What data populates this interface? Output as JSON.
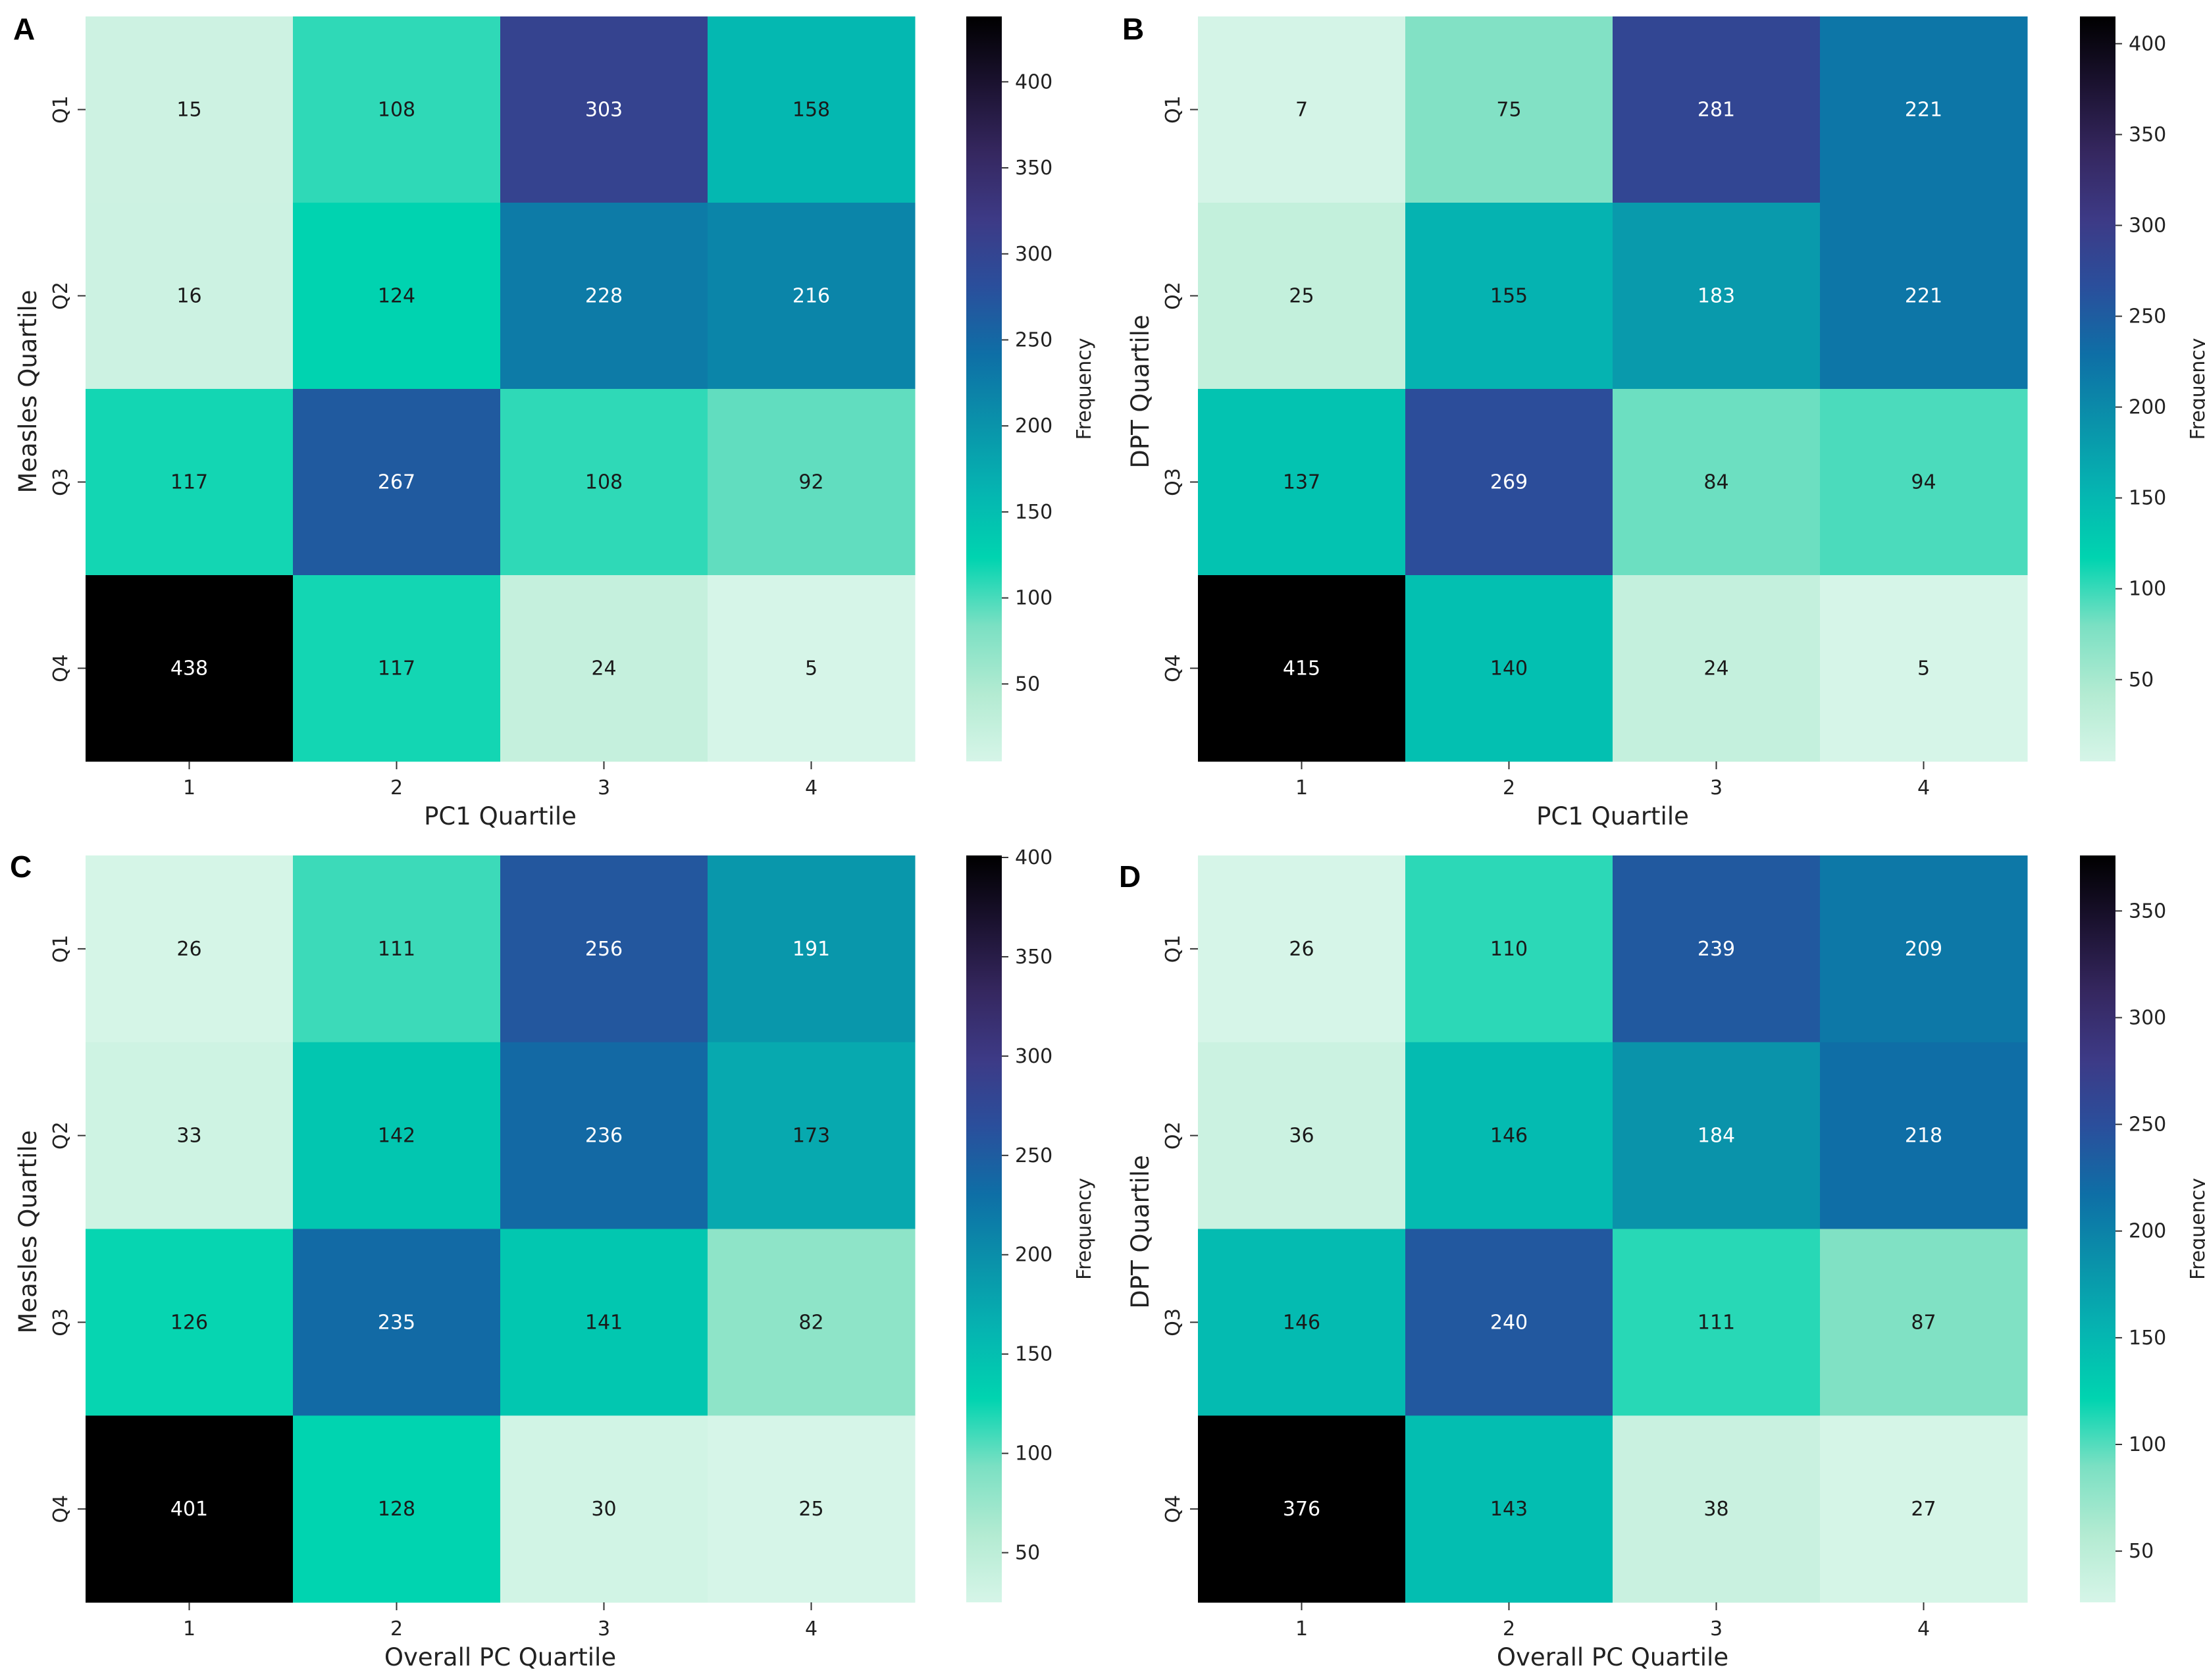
{
  "colormap": [
    "#d6f5e8",
    "#b3ebd2",
    "#7be0c3",
    "#00d4b0",
    "#05b4b1",
    "#0a92aa",
    "#0e6fa6",
    "#2a4f9c",
    "#3d3a86",
    "#35275f",
    "#1b1230",
    "#000000"
  ],
  "chart_data": [
    {
      "type": "heatmap",
      "panel": "A",
      "xlabel": "PC1 Quartile",
      "ylabel": "Measles Quartile",
      "x_categories": [
        "1",
        "2",
        "3",
        "4"
      ],
      "y_categories": [
        "Q1",
        "Q2",
        "Q3",
        "Q4"
      ],
      "values": [
        [
          15,
          108,
          303,
          158
        ],
        [
          16,
          124,
          228,
          216
        ],
        [
          117,
          267,
          108,
          92
        ],
        [
          438,
          117,
          24,
          5
        ]
      ],
      "colorbar": {
        "label": "Frequency",
        "range": [
          5,
          438
        ],
        "ticks": [
          50,
          100,
          150,
          200,
          250,
          300,
          350,
          400
        ]
      }
    },
    {
      "type": "heatmap",
      "panel": "B",
      "xlabel": "PC1 Quartile",
      "ylabel": "DPT Quartile",
      "x_categories": [
        "1",
        "2",
        "3",
        "4"
      ],
      "y_categories": [
        "Q1",
        "Q2",
        "Q3",
        "Q4"
      ],
      "values": [
        [
          7,
          75,
          281,
          221
        ],
        [
          25,
          155,
          183,
          221
        ],
        [
          137,
          269,
          84,
          94
        ],
        [
          415,
          140,
          24,
          5
        ]
      ],
      "colorbar": {
        "label": "Frequency",
        "range": [
          5,
          415
        ],
        "ticks": [
          50,
          100,
          150,
          200,
          250,
          300,
          350,
          400
        ]
      }
    },
    {
      "type": "heatmap",
      "panel": "C",
      "xlabel": "Overall PC Quartile",
      "ylabel": "Measles Quartile",
      "x_categories": [
        "1",
        "2",
        "3",
        "4"
      ],
      "y_categories": [
        "Q1",
        "Q2",
        "Q3",
        "Q4"
      ],
      "values": [
        [
          26,
          111,
          256,
          191
        ],
        [
          33,
          142,
          236,
          173
        ],
        [
          126,
          235,
          141,
          82
        ],
        [
          401,
          128,
          30,
          25
        ]
      ],
      "colorbar": {
        "label": "Frequency",
        "range": [
          25,
          401
        ],
        "ticks": [
          50,
          100,
          150,
          200,
          250,
          300,
          350,
          400
        ]
      }
    },
    {
      "type": "heatmap",
      "panel": "D",
      "xlabel": "Overall PC Quartile",
      "ylabel": "DPT Quartile",
      "x_categories": [
        "1",
        "2",
        "3",
        "4"
      ],
      "y_categories": [
        "Q1",
        "Q2",
        "Q3",
        "Q4"
      ],
      "values": [
        [
          26,
          110,
          239,
          209
        ],
        [
          36,
          146,
          184,
          218
        ],
        [
          146,
          240,
          111,
          87
        ],
        [
          376,
          143,
          38,
          27
        ]
      ],
      "colorbar": {
        "label": "Frequency",
        "range": [
          26,
          376
        ],
        "ticks": [
          50,
          100,
          150,
          200,
          250,
          300,
          350
        ]
      }
    }
  ]
}
